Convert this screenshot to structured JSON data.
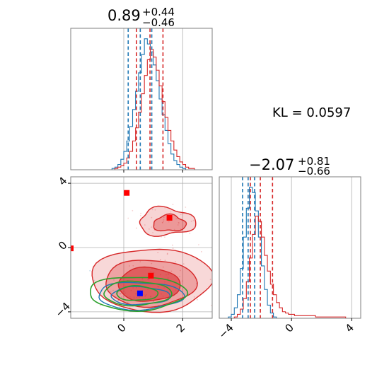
{
  "colors": {
    "posterior_a": "#1f77b4",
    "posterior_b": "#d62728",
    "truth_a": "#0000ff",
    "truth_b": "#ff0000",
    "contour_alt": "#2ca02c",
    "grid": "#b0b0b0",
    "frame": "#7f7f7f"
  },
  "annotation": {
    "kl_text": "KL = 0.0597"
  },
  "titles": {
    "p1": {
      "main": "0.89",
      "plus": "+0.44",
      "minus": "−0.46"
    },
    "p2": {
      "main": "−2.07",
      "plus": "+0.81",
      "minus": "−0.66"
    }
  },
  "chart_data": [
    {
      "type": "histogram",
      "panel": "marginal-param-1",
      "xlim": [
        -1.8,
        3.0
      ],
      "grid": true,
      "xticks": [
        0,
        2
      ],
      "x_tick_labels_shown": false,
      "bins": {
        "start": -1.8,
        "width": 0.1,
        "blue": [
          0,
          0,
          0,
          0,
          0,
          0,
          0,
          0,
          0,
          0,
          0,
          0,
          0,
          0,
          1,
          2,
          4,
          8,
          14,
          22,
          33,
          46,
          60,
          74,
          88,
          100,
          96,
          90,
          80,
          68,
          54,
          42,
          30,
          20,
          12,
          7,
          4,
          2,
          1,
          0,
          0,
          0,
          0,
          0,
          0,
          0,
          0,
          0
        ],
        "red": [
          0,
          0,
          0,
          0,
          0,
          0,
          0,
          0,
          0,
          0,
          0,
          0,
          0,
          0,
          0,
          1,
          2,
          3,
          5,
          9,
          14,
          22,
          32,
          44,
          58,
          72,
          84,
          92,
          86,
          76,
          64,
          52,
          40,
          30,
          22,
          15,
          10,
          6,
          4,
          2,
          1,
          1,
          0,
          0,
          0,
          0,
          0,
          0
        ]
      },
      "quantile_lines": {
        "blue": [
          0.15,
          0.56,
          0.95
        ],
        "red": [
          0.43,
          0.89,
          1.33
        ]
      }
    },
    {
      "type": "contour",
      "panel": "joint-param-1-param-2",
      "xlim": [
        -1.8,
        3.0
      ],
      "ylim": [
        -4.4,
        4.4
      ],
      "grid": true,
      "xticks": [
        0,
        2
      ],
      "yticks": [
        -4,
        0,
        4
      ],
      "x_tick_labels": [
        "0",
        "2"
      ],
      "y_tick_labels": [
        "−4",
        "0",
        "4"
      ],
      "red_contours": [
        {
          "cx": 0.95,
          "cy": -2.0,
          "rx": 2.05,
          "ry": 1.95
        },
        {
          "cx": 0.9,
          "cy": -2.2,
          "rx": 1.55,
          "ry": 1.45
        },
        {
          "cx": 0.85,
          "cy": -2.3,
          "rx": 1.05,
          "ry": 1.05
        }
      ],
      "red_secondary_contours": [
        {
          "cx": 1.45,
          "cy": 1.6,
          "rx": 0.95,
          "ry": 0.85
        },
        {
          "cx": 1.55,
          "cy": 1.5,
          "rx": 0.55,
          "ry": 0.5
        }
      ],
      "blue_contours": [
        {
          "cx": 0.55,
          "cy": -3.0,
          "rx": 1.45,
          "ry": 0.85
        },
        {
          "cx": 0.55,
          "cy": -3.0,
          "rx": 1.0,
          "ry": 0.55
        }
      ],
      "green_contours": [
        {
          "cx": 0.45,
          "cy": -2.85,
          "rx": 1.65,
          "ry": 1.05
        },
        {
          "cx": 0.45,
          "cy": -2.85,
          "rx": 1.15,
          "ry": 0.75
        },
        {
          "cx": 0.45,
          "cy": -2.85,
          "rx": 0.7,
          "ry": 0.45
        }
      ],
      "truth_points_red": [
        {
          "x": 0.1,
          "y": 3.4
        },
        {
          "x": 1.55,
          "y": 1.85
        },
        {
          "x": 0.92,
          "y": -1.75
        },
        {
          "x": -1.8,
          "y": -0.05
        }
      ],
      "truth_points_blue": [
        {
          "x": 0.55,
          "y": -2.85
        }
      ]
    },
    {
      "type": "histogram",
      "panel": "marginal-param-2",
      "xlim": [
        -4.8,
        4.6
      ],
      "grid": true,
      "xticks": [
        -4,
        0,
        4
      ],
      "x_tick_labels": [
        "−4",
        "0",
        "4"
      ],
      "bins": {
        "start": -4.8,
        "width": 0.2,
        "blue": [
          0,
          0,
          0,
          1,
          3,
          8,
          18,
          38,
          62,
          84,
          100,
          96,
          82,
          62,
          40,
          22,
          10,
          4,
          1,
          0,
          0,
          0,
          0,
          0,
          0,
          0,
          0,
          0,
          0,
          0,
          0,
          0,
          0,
          0,
          0,
          0,
          0,
          0,
          0,
          0,
          0,
          0,
          0,
          0,
          0,
          0,
          0
        ],
        "red": [
          0,
          0,
          0,
          0,
          0,
          1,
          3,
          7,
          15,
          28,
          46,
          64,
          78,
          74,
          62,
          48,
          36,
          26,
          18,
          12,
          8,
          5,
          4,
          3,
          3,
          2,
          2,
          2,
          2,
          2,
          2,
          2,
          1,
          1,
          1,
          1,
          1,
          1,
          1,
          1,
          1,
          1,
          0,
          0,
          0,
          0,
          0
        ]
      },
      "quantile_lines": {
        "blue": [
          -3.25,
          -2.88,
          -2.45
        ],
        "red": [
          -2.73,
          -2.07,
          -1.26
        ]
      }
    }
  ]
}
